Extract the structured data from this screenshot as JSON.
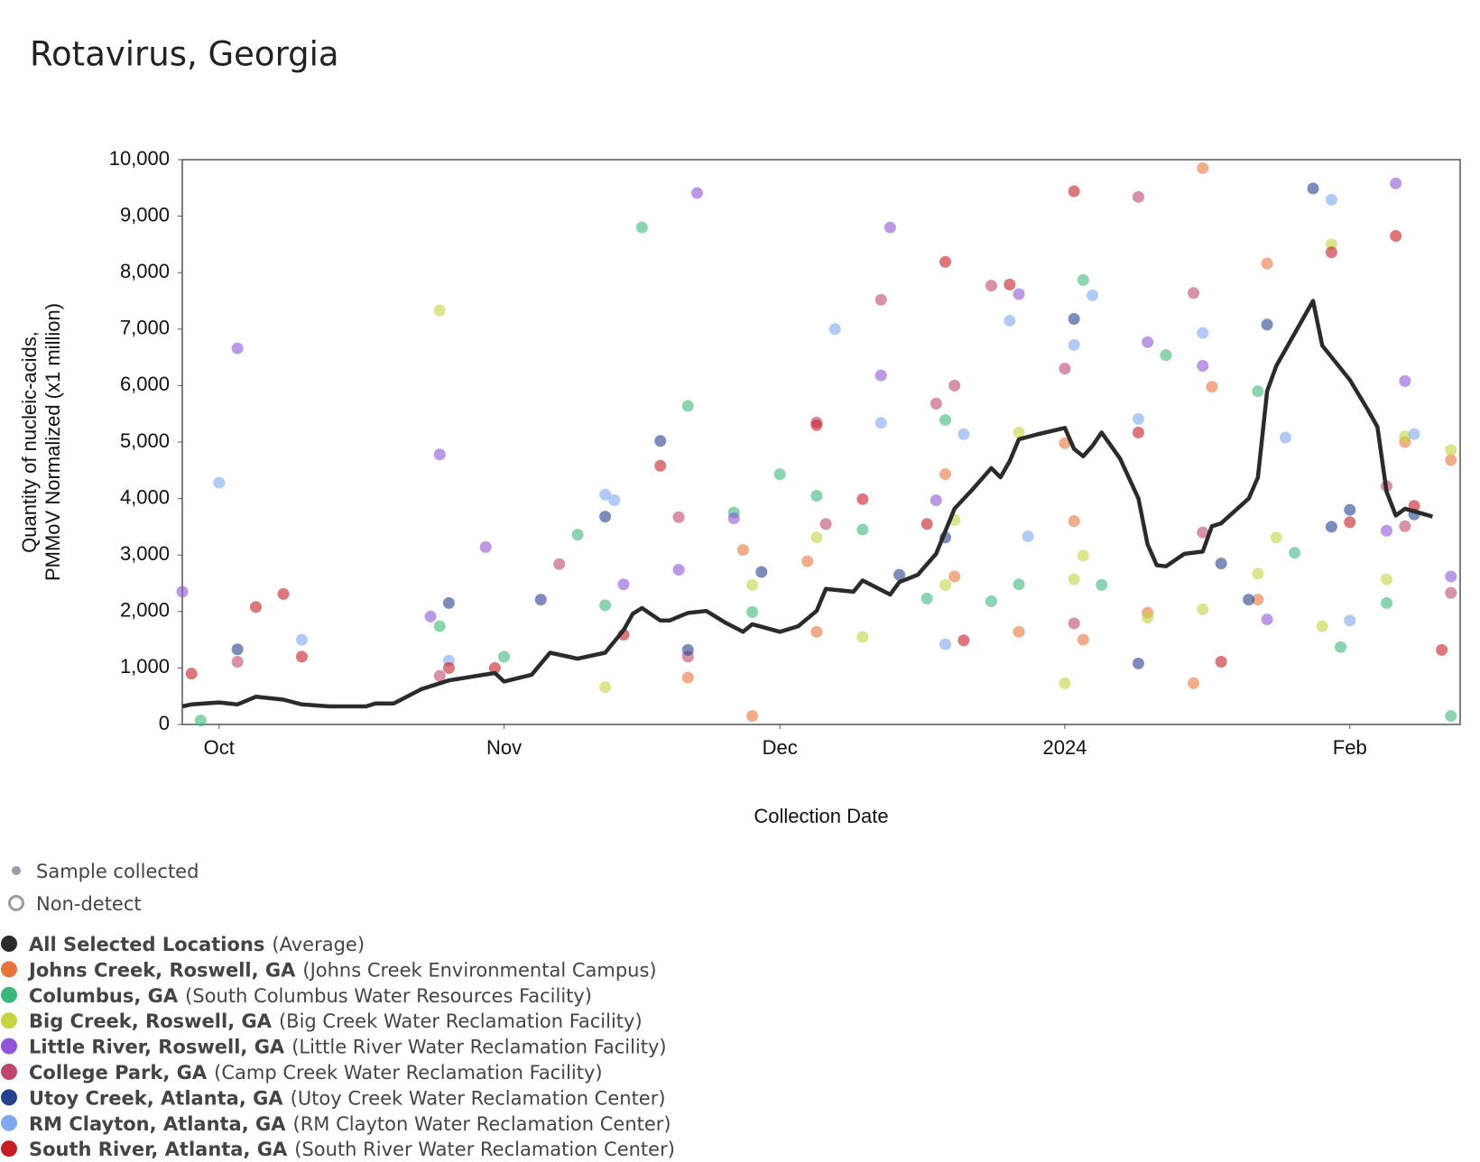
{
  "chart_data": {
    "type": "scatter",
    "title": "Rotavirus, Georgia",
    "x_label": "Collection Date",
    "y_label": [
      "Quantity of nucleic-acids,",
      "PMMoV Normalized (x1 million)"
    ],
    "xlim": [
      "2023-09-27",
      "2024-02-13"
    ],
    "xticks": [
      {
        "value": "2023-10-01",
        "label": "Oct"
      },
      {
        "value": "2023-11-01",
        "label": "Nov"
      },
      {
        "value": "2023-12-01",
        "label": "Dec"
      },
      {
        "value": "2024-01-01",
        "label": "2024"
      },
      {
        "value": "2024-02-01",
        "label": "Feb"
      }
    ],
    "ylim": [
      0,
      10000
    ],
    "yticks": [
      0,
      {
        "value": 1000,
        "label": "1,000"
      },
      {
        "value": 2000,
        "label": "2,000"
      },
      {
        "value": 3000,
        "label": "3,000"
      },
      {
        "value": 4000,
        "label": "4,000"
      },
      {
        "value": 5000,
        "label": "5,000"
      },
      {
        "value": 6000,
        "label": "6,000"
      },
      {
        "value": 7000,
        "label": "7,000"
      },
      {
        "value": 8000,
        "label": "8,000"
      },
      {
        "value": 9000,
        "label": "9,000"
      },
      {
        "value": 10000,
        "label": "10,000"
      }
    ],
    "marker_legend": [
      "Sample collected",
      "Non-detect"
    ],
    "series": [
      {
        "name": "All Selected Locations",
        "facility": "(Average)",
        "type": "line",
        "color": "#2b2b2b",
        "x": [
          "2023-09-27",
          "2023-09-28",
          "2023-10-01",
          "2023-10-03",
          "2023-10-05",
          "2023-10-08",
          "2023-10-10",
          "2023-10-13",
          "2023-10-17",
          "2023-10-18",
          "2023-10-20",
          "2023-10-23",
          "2023-10-26",
          "2023-10-29",
          "2023-10-31",
          "2023-11-01",
          "2023-11-04",
          "2023-11-06",
          "2023-11-09",
          "2023-11-12",
          "2023-11-14",
          "2023-11-15",
          "2023-11-16",
          "2023-11-18",
          "2023-11-19",
          "2023-11-21",
          "2023-11-23",
          "2023-11-25",
          "2023-11-27",
          "2023-11-28",
          "2023-12-01",
          "2023-12-03",
          "2023-12-05",
          "2023-12-06",
          "2023-12-09",
          "2023-12-10",
          "2023-12-13",
          "2023-12-14",
          "2023-12-16",
          "2023-12-18",
          "2023-12-20",
          "2023-12-22",
          "2023-12-24",
          "2023-12-25",
          "2023-12-26",
          "2023-12-27",
          "2023-12-29",
          "2024-01-01",
          "2024-01-02",
          "2024-01-03",
          "2024-01-04",
          "2024-01-05",
          "2024-01-07",
          "2024-01-09",
          "2024-01-10",
          "2024-01-11",
          "2024-01-12",
          "2024-01-14",
          "2024-01-16",
          "2024-01-17",
          "2024-01-18",
          "2024-01-21",
          "2024-01-22",
          "2024-01-23",
          "2024-01-24",
          "2024-01-28",
          "2024-01-29",
          "2024-02-01",
          "2024-02-03",
          "2024-02-04",
          "2024-02-05",
          "2024-02-06",
          "2024-02-07",
          "2024-02-10"
        ],
        "values": [
          320,
          355,
          390,
          355,
          490,
          440,
          355,
          320,
          320,
          370,
          370,
          625,
          780,
          860,
          910,
          760,
          880,
          1270,
          1165,
          1270,
          1670,
          1960,
          2060,
          1840,
          1840,
          1975,
          2010,
          1810,
          1640,
          1775,
          1640,
          1740,
          2010,
          2400,
          2350,
          2550,
          2300,
          2520,
          2650,
          3020,
          3820,
          4170,
          4540,
          4375,
          4660,
          5050,
          5135,
          5250,
          4880,
          4750,
          4930,
          5170,
          4710,
          4000,
          3190,
          2820,
          2800,
          3020,
          3060,
          3510,
          3560,
          4000,
          4375,
          5900,
          6350,
          7500,
          6710,
          6100,
          5560,
          5270,
          4120,
          3700,
          3820,
          3680
        ]
      },
      {
        "name": "Johns Creek, Roswell, GA",
        "facility": "(Johns Creek Environmental Campus)",
        "type": "scatter",
        "color": "#e8743b",
        "x": [
          "2023-11-21",
          "2023-11-27",
          "2023-11-28",
          "2023-12-04",
          "2023-12-05",
          "2023-12-19",
          "2023-12-20",
          "2023-12-27",
          "2024-01-01",
          "2024-01-02",
          "2024-01-03",
          "2024-01-10",
          "2024-01-15",
          "2024-01-16",
          "2024-01-17",
          "2024-01-22",
          "2024-01-23",
          "2024-02-07",
          "2024-02-12"
        ],
        "values": [
          830,
          3090,
          150,
          2890,
          1640,
          4430,
          2620,
          1640,
          4980,
          3600,
          1500,
          1980,
          730,
          9850,
          5980,
          2210,
          8160,
          5000,
          4680
        ]
      },
      {
        "name": "Columbus, GA",
        "facility": "(South Columbus Water Resources Facility)",
        "type": "scatter",
        "color": "#3cb77a",
        "x": [
          "2023-09-29",
          "2023-10-25",
          "2023-11-01",
          "2023-11-09",
          "2023-11-12",
          "2023-11-16",
          "2023-11-21",
          "2023-11-26",
          "2023-11-28",
          "2023-12-01",
          "2023-12-05",
          "2023-12-10",
          "2023-12-17",
          "2023-12-19",
          "2023-12-24",
          "2023-12-27",
          "2024-01-03",
          "2024-01-05",
          "2024-01-12",
          "2024-01-22",
          "2024-01-26",
          "2024-01-31",
          "2024-02-05",
          "2024-02-12"
        ],
        "values": [
          70,
          1740,
          1200,
          3360,
          2110,
          8800,
          5640,
          3750,
          1990,
          4430,
          4050,
          3450,
          2230,
          5390,
          2180,
          2480,
          7870,
          2470,
          6540,
          5900,
          3040,
          1370,
          2150,
          150
        ]
      },
      {
        "name": "Big Creek, Roswell, GA",
        "facility": "(Big Creek Water Reclamation Facility)",
        "type": "scatter",
        "color": "#c5d43f",
        "x": [
          "2023-10-25",
          "2023-11-12",
          "2023-11-28",
          "2023-12-05",
          "2023-12-10",
          "2023-12-19",
          "2023-12-20",
          "2023-12-27",
          "2024-01-01",
          "2024-01-02",
          "2024-01-03",
          "2024-01-10",
          "2024-01-16",
          "2024-01-22",
          "2024-01-24",
          "2024-01-29",
          "2024-01-30",
          "2024-02-05",
          "2024-02-07",
          "2024-02-12"
        ],
        "values": [
          7330,
          660,
          2470,
          3310,
          1550,
          2470,
          3620,
          5170,
          730,
          2570,
          2990,
          1890,
          2040,
          2670,
          3310,
          1740,
          8500,
          2570,
          5100,
          4860
        ]
      },
      {
        "name": "Little River, Roswell, GA",
        "facility": "(Little River Water Reclamation Facility)",
        "type": "scatter",
        "color": "#8e55d6",
        "x": [
          "2023-09-27",
          "2023-10-03",
          "2023-10-24",
          "2023-10-25",
          "2023-10-30",
          "2023-11-14",
          "2023-11-20",
          "2023-11-22",
          "2023-11-26",
          "2023-12-12",
          "2023-12-13",
          "2023-12-18",
          "2023-12-27",
          "2024-01-10",
          "2024-01-16",
          "2024-01-23",
          "2024-02-05",
          "2024-02-06",
          "2024-02-07",
          "2024-02-12"
        ],
        "values": [
          2350,
          6660,
          1910,
          4780,
          3140,
          2480,
          2740,
          9410,
          3650,
          6180,
          8800,
          3970,
          7620,
          6770,
          6350,
          1860,
          3430,
          9580,
          6080,
          2620
        ]
      },
      {
        "name": "College Park, GA",
        "facility": "(Camp Creek Water Reclamation Facility)",
        "type": "scatter",
        "color": "#c0466f",
        "x": [
          "2023-10-03",
          "2023-10-25",
          "2023-11-07",
          "2023-11-20",
          "2023-11-21",
          "2023-12-05",
          "2023-12-06",
          "2023-12-12",
          "2023-12-18",
          "2023-12-20",
          "2023-12-24",
          "2024-01-01",
          "2024-01-02",
          "2024-01-09",
          "2024-01-15",
          "2024-01-16",
          "2024-02-05",
          "2024-02-07",
          "2024-02-12"
        ],
        "values": [
          1110,
          860,
          2840,
          3670,
          1200,
          5350,
          3550,
          7520,
          5680,
          6000,
          7770,
          6300,
          1790,
          9340,
          7640,
          3400,
          4220,
          3510,
          2330
        ]
      },
      {
        "name": "Utoy Creek, Atlanta, GA",
        "facility": "(Utoy Creek Water Reclamation Center)",
        "type": "scatter",
        "color": "#25408f",
        "x": [
          "2023-10-03",
          "2023-10-26",
          "2023-11-05",
          "2023-11-12",
          "2023-11-18",
          "2023-11-21",
          "2023-11-29",
          "2023-12-14",
          "2023-12-19",
          "2024-01-02",
          "2024-01-09",
          "2024-01-18",
          "2024-01-21",
          "2024-01-23",
          "2024-01-28",
          "2024-01-30",
          "2024-02-01",
          "2024-02-08"
        ],
        "values": [
          1330,
          2150,
          2210,
          3680,
          5020,
          1320,
          2700,
          2650,
          3310,
          7180,
          1080,
          2850,
          2210,
          7080,
          9490,
          3500,
          3800,
          3720
        ]
      },
      {
        "name": "RM Clayton, Atlanta, GA",
        "facility": "(RM Clayton Water Reclamation Center)",
        "type": "scatter",
        "color": "#7fa8f0",
        "x": [
          "2023-10-01",
          "2023-10-10",
          "2023-10-26",
          "2023-11-12",
          "2023-11-13",
          "2023-12-07",
          "2023-12-12",
          "2023-12-19",
          "2023-12-21",
          "2023-12-26",
          "2023-12-28",
          "2024-01-02",
          "2024-01-04",
          "2024-01-09",
          "2024-01-16",
          "2024-01-25",
          "2024-01-30",
          "2024-02-01",
          "2024-02-08"
        ],
        "values": [
          4280,
          1500,
          1130,
          4070,
          3970,
          7000,
          5340,
          1420,
          5140,
          7150,
          3330,
          6720,
          7600,
          5410,
          6930,
          5080,
          9290,
          1840,
          5140
        ]
      },
      {
        "name": "South River, Atlanta, GA",
        "facility": "(South River Water Reclamation Center)",
        "type": "scatter",
        "color": "#c81d25",
        "x": [
          "2023-09-28",
          "2023-10-05",
          "2023-10-08",
          "2023-10-10",
          "2023-10-26",
          "2023-10-31",
          "2023-11-14",
          "2023-11-18",
          "2023-12-05",
          "2023-12-10",
          "2023-12-17",
          "2023-12-19",
          "2023-12-21",
          "2023-12-26",
          "2024-01-02",
          "2024-01-09",
          "2024-01-18",
          "2024-01-30",
          "2024-02-01",
          "2024-02-06",
          "2024-02-08",
          "2024-02-11"
        ],
        "values": [
          900,
          2080,
          2310,
          1200,
          1000,
          1000,
          1590,
          4580,
          5300,
          3990,
          3550,
          8190,
          1490,
          7790,
          9440,
          5170,
          1110,
          8360,
          3580,
          8650,
          3870,
          1320
        ]
      }
    ]
  }
}
